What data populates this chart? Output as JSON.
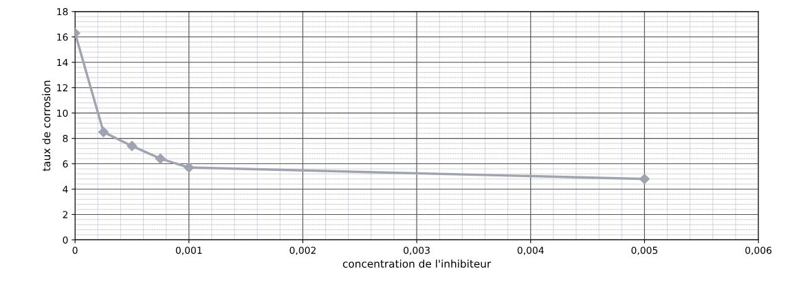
{
  "chart_data": {
    "type": "line",
    "xlabel": "concentration de l'inhibiteur",
    "ylabel": "taux de corrosion",
    "x": [
      0,
      0.00025,
      0.0005,
      0.00075,
      0.001,
      0.005
    ],
    "series": [
      {
        "color": "#a0a4b0",
        "values": [
          16.3,
          8.5,
          7.4,
          6.4,
          5.7,
          4.8
        ]
      }
    ],
    "xlim": [
      0,
      0.006
    ],
    "ylim": [
      0,
      18
    ],
    "xticks": [
      0,
      {
        "value": 0.001,
        "label": "0,001"
      },
      {
        "value": 0.002,
        "label": "0,002"
      },
      {
        "value": 0.003,
        "label": "0,003"
      },
      {
        "value": 0.004,
        "label": "0,004"
      },
      {
        "value": 0.005,
        "label": "0,005"
      },
      {
        "value": 0.006,
        "label": "0,006"
      }
    ],
    "yticks": [
      0,
      2,
      4,
      6,
      8,
      10,
      12,
      14,
      16,
      18
    ],
    "grid": true,
    "marker": "diamond",
    "line_style": "solid"
  }
}
